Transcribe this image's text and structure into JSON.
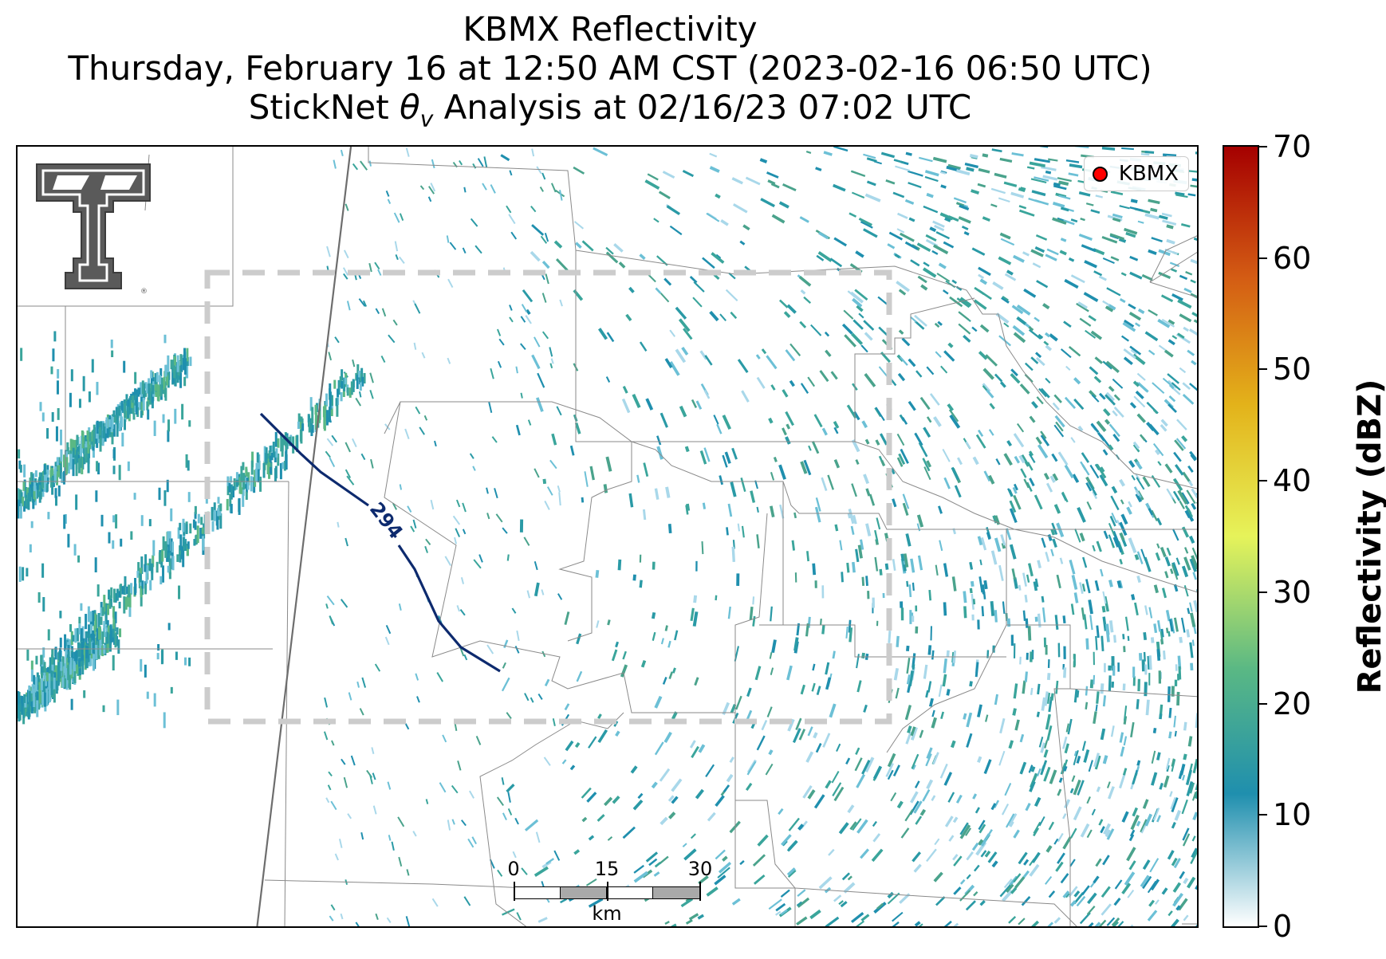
{
  "title": {
    "line1": "KBMX Reflectivity",
    "line2": "Thursday, February 16 at 12:50 AM CST (2023-02-16 06:50 UTC)",
    "line3_prefix": "StickNet ",
    "line3_theta": "θ",
    "line3_sub": "v",
    "line3_suffix": " Analysis at 02/16/23 07:02 UTC"
  },
  "legend": {
    "label": "KBMX",
    "marker_color": "#ff0000"
  },
  "contour": {
    "label": "294",
    "color": "#0d2a6e"
  },
  "scale_bar": {
    "ticks": [
      "0",
      "15",
      "30"
    ],
    "unit": "km"
  },
  "colorbar": {
    "title": "Reflectivity (dBZ)",
    "ticks": [
      "70",
      "60",
      "50",
      "40",
      "30",
      "20",
      "10",
      "0"
    ],
    "range": [
      0,
      70
    ],
    "colors": [
      "#ffffff",
      "#1f8fae",
      "#5ab884",
      "#e6f35a",
      "#e3b21a",
      "#d45d14",
      "#a50000"
    ]
  },
  "logo": {
    "name": "double-t-logo",
    "color": "#555555"
  }
}
